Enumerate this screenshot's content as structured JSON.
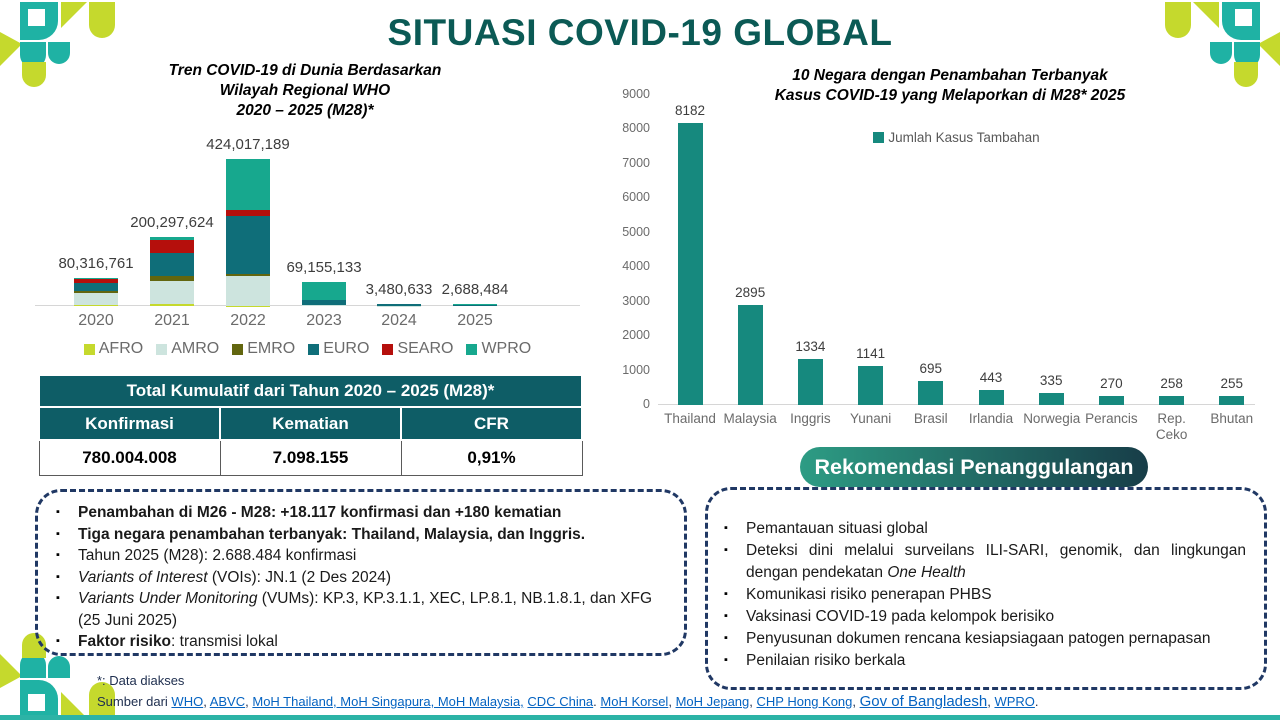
{
  "title": "SITUASI COVID-19 GLOBAL",
  "colors": {
    "accent_teal": "#0b5a55",
    "table_header_teal": "#0e5d66",
    "dashed_border_navy": "#203864",
    "link_blue": "#0563c1",
    "bottom_bar_teal": "#2cb3a6",
    "pill_gradient_from": "#2d9c84",
    "pill_gradient_to": "#173d48",
    "right_bar_teal": "#16897e",
    "logo_lime": "#c5d92d",
    "logo_teal": "#1fb2a4"
  },
  "chart_data": [
    {
      "type": "bar",
      "stacked": true,
      "title": "Tren COVID-19 di Dunia Berdasarkan Wilayah Regional WHO 2020 – 2025 (M28)*",
      "title_lines": [
        "Tren COVID-19 di Dunia Berdasarkan",
        "Wilayah Regional WHO",
        "2020 – 2025 (M28)*"
      ],
      "categories": [
        "2020",
        "2021",
        "2022",
        "2023",
        "2024",
        "2025"
      ],
      "totals": [
        80316761,
        200297624,
        424017189,
        69155133,
        3480633,
        2688484
      ],
      "total_labels": [
        "80,316,761",
        "200,297,624",
        "424,017,189",
        "69,155,133",
        "3,480,633",
        "2,688,484"
      ],
      "series": [
        {
          "name": "AFRO",
          "color": "#c5d92d",
          "values": [
            2000000,
            5000000,
            1000000,
            200000,
            30000,
            20000
          ]
        },
        {
          "name": "AMRO",
          "color": "#cde4de",
          "values": [
            36300000,
            68000000,
            87000000,
            3000000,
            150000,
            70000
          ]
        },
        {
          "name": "EMRO",
          "color": "#62660f",
          "values": [
            5000000,
            12300000,
            5000000,
            500000,
            50000,
            30000
          ]
        },
        {
          "name": "EURO",
          "color": "#0f6e79",
          "values": [
            24300000,
            69000000,
            168017189,
            12455133,
            2250633,
            600000
          ]
        },
        {
          "name": "SEARO",
          "color": "#b50f0c",
          "values": [
            11000000,
            37000000,
            16000000,
            800000,
            100000,
            50000
          ]
        },
        {
          "name": "WPRO",
          "color": "#17a88e",
          "values": [
            1716761,
            8997624,
            147000000,
            52200000,
            900000,
            1918484
          ]
        }
      ],
      "ylim": [
        0,
        450000000
      ],
      "grid": false,
      "legend_position": "bottom",
      "note": "series values are visual estimates; stack totals are the labelled figures"
    },
    {
      "type": "bar",
      "stacked": false,
      "title": "10 Negara dengan Penambahan Terbanyak Kasus COVID-19 yang Melaporkan di M28* 2025",
      "title_lines": [
        "10 Negara dengan Penambahan Terbanyak",
        "Kasus COVID-19 yang Melaporkan di M28* 2025"
      ],
      "series_name": "Jumlah Kasus Tambahan",
      "bar_color": "#16897e",
      "categories": [
        "Thailand",
        "Malaysia",
        "Inggris",
        "Yunani",
        "Brasil",
        "Irlandia",
        "Norwegia",
        "Perancis",
        "Rep. Ceko",
        "Bhutan"
      ],
      "values": [
        8182,
        2895,
        1334,
        1141,
        695,
        443,
        335,
        270,
        258,
        255
      ],
      "yticks": [
        0,
        1000,
        2000,
        3000,
        4000,
        5000,
        6000,
        7000,
        8000,
        9000
      ],
      "ylim": [
        0,
        9000
      ],
      "grid": false,
      "legend_position": "top"
    }
  ],
  "summary_table": {
    "title": "Total Kumulatif dari Tahun 2020 – 2025 (M28)*",
    "columns": [
      "Konfirmasi",
      "Kematian",
      "CFR"
    ],
    "values": [
      "780.004.008",
      "7.098.155",
      "0,91%"
    ]
  },
  "highlights": {
    "items": [
      {
        "segments": [
          {
            "style": "bold",
            "text": "Penambahan di M26 - M28: +18.117 konfirmasi dan +180 kematian"
          }
        ]
      },
      {
        "segments": [
          {
            "style": "bold",
            "text": "Tiga negara penambahan terbanyak: Thailand, Malaysia, dan Inggris."
          }
        ]
      },
      {
        "segments": [
          {
            "style": "normal",
            "text": "Tahun 2025 (M28): 2.688.484 konfirmasi"
          }
        ]
      },
      {
        "segments": [
          {
            "style": "italic",
            "text": "Variants of Interest"
          },
          {
            "style": "normal",
            "text": " (VOIs): JN.1 (2 Des 2024)"
          }
        ]
      },
      {
        "segments": [
          {
            "style": "italic",
            "text": "Variants Under Monitoring"
          },
          {
            "style": "normal",
            "text": " (VUMs): KP.3, KP.3.1.1, XEC, LP.8.1, NB.1.8.1, dan XFG (25 Juni 2025)"
          }
        ]
      },
      {
        "segments": [
          {
            "style": "bold",
            "text": "Faktor risiko"
          },
          {
            "style": "normal",
            "text": ": transmisi lokal"
          }
        ]
      }
    ]
  },
  "recommendations": {
    "header": "Rekomendasi Penanggulangan",
    "items": [
      {
        "segments": [
          {
            "style": "normal",
            "text": "Pemantauan situasi global"
          }
        ]
      },
      {
        "segments": [
          {
            "style": "normal",
            "text": "Deteksi dini melalui surveilans ILI-SARI, genomik, dan lingkungan dengan pendekatan "
          },
          {
            "style": "italic",
            "text": "One Health"
          }
        ]
      },
      {
        "segments": [
          {
            "style": "normal",
            "text": "Komunikasi risiko penerapan PHBS"
          }
        ]
      },
      {
        "segments": [
          {
            "style": "normal",
            "text": "Vaksinasi COVID-19 pada kelompok berisiko"
          }
        ]
      },
      {
        "segments": [
          {
            "style": "normal",
            "text": "Penyusunan dokumen rencana kesiapsiagaan patogen pernapasan"
          }
        ]
      },
      {
        "segments": [
          {
            "style": "normal",
            "text": "Penilaian risiko berkala"
          }
        ]
      }
    ]
  },
  "footer": {
    "note": "*: Data diakses",
    "source_segments": [
      {
        "style": "plain",
        "text": "Sumber dari "
      },
      {
        "style": "link",
        "text": "WHO"
      },
      {
        "style": "plain",
        "text": ", "
      },
      {
        "style": "link",
        "text": "ABVC"
      },
      {
        "style": "plain",
        "text": ", "
      },
      {
        "style": "link",
        "text": "MoH Thailand, MoH Singapura, MoH Malaysia,"
      },
      {
        "style": "plain",
        "text": " "
      },
      {
        "style": "link",
        "text": "CDC China"
      },
      {
        "style": "plain",
        "text": ". "
      },
      {
        "style": "link",
        "text": "MoH Korsel"
      },
      {
        "style": "plain",
        "text": ", "
      },
      {
        "style": "link",
        "text": "MoH Jepang"
      },
      {
        "style": "plain",
        "text": ", "
      },
      {
        "style": "link",
        "text": "CHP Hong Kong"
      },
      {
        "style": "plain",
        "text": ", "
      },
      {
        "style": "link-large",
        "text": "Gov of Bangladesh"
      },
      {
        "style": "plain",
        "text": ", "
      },
      {
        "style": "link",
        "text": "WPRO"
      },
      {
        "style": "plain",
        "text": "."
      }
    ]
  }
}
